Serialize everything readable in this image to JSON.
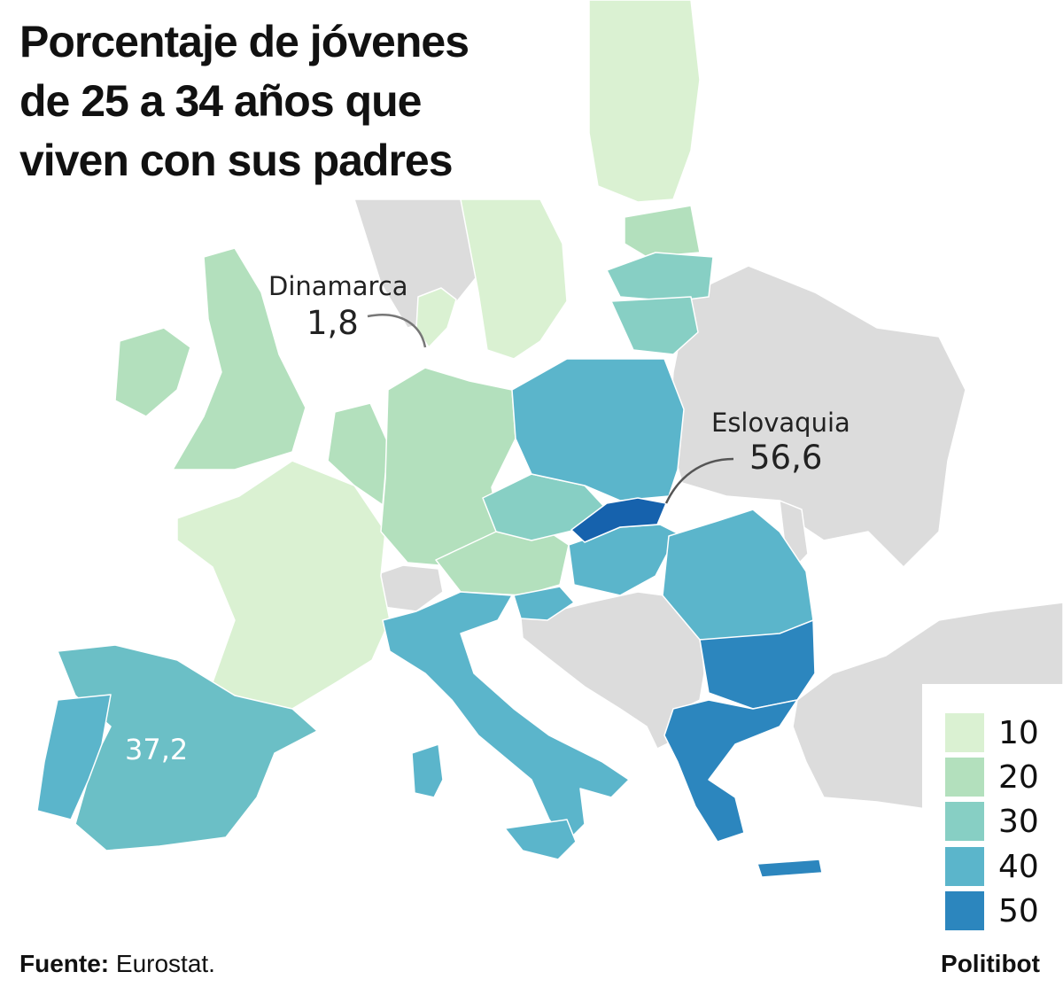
{
  "title_lines": [
    "Porcentaje de jóvenes",
    "de 25 a 34 años que",
    "viven con sus padres"
  ],
  "callouts": {
    "denmark": {
      "name": "Dinamarca",
      "value": "1,8"
    },
    "slovakia": {
      "name": "Eslovaquia",
      "value": "56,6"
    },
    "spain": {
      "value": "37,2"
    }
  },
  "legend": [
    {
      "label": "10",
      "color": "#daf1d2"
    },
    {
      "label": "20",
      "color": "#b3e0bd"
    },
    {
      "label": "30",
      "color": "#87cfc4"
    },
    {
      "label": "40",
      "color": "#5bb5cb"
    },
    {
      "label": "50",
      "color": "#2c86be"
    }
  ],
  "map_colors": {
    "no_data": "#dcdcdc",
    "border": "#ffffff",
    "sea": "#ffffff",
    "highlight": "#1662ad"
  },
  "footer": {
    "source_label": "Fuente:",
    "source_value": " Eurostat.",
    "brand": "Politibot"
  }
}
